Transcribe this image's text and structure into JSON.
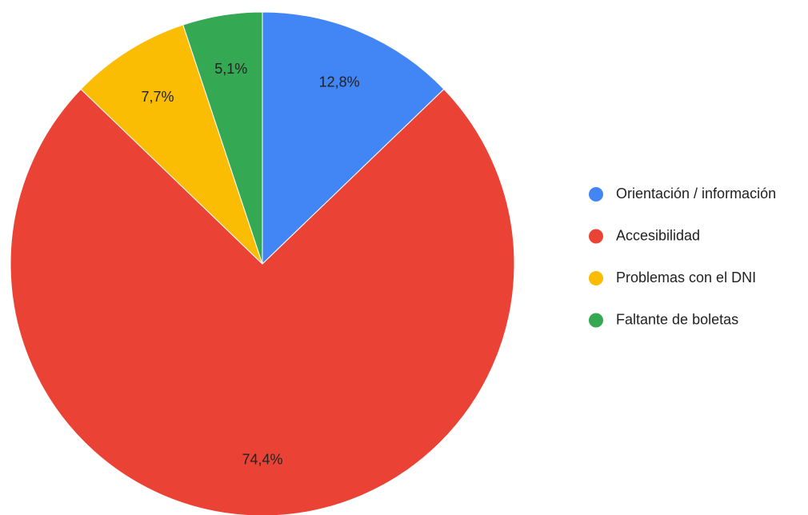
{
  "chart_data": {
    "type": "pie",
    "categories": [
      "Orientación / información",
      "Accesibilidad",
      "Problemas con el DNI",
      "Faltante de boletas"
    ],
    "values": [
      12.8,
      74.4,
      7.7,
      5.1
    ],
    "value_labels": [
      "12,8%",
      "74,4%",
      "7,7%",
      "5,1%"
    ],
    "colors": [
      "#4285f4",
      "#ea4335",
      "#fbbc04",
      "#34a853"
    ],
    "legend": "right"
  }
}
